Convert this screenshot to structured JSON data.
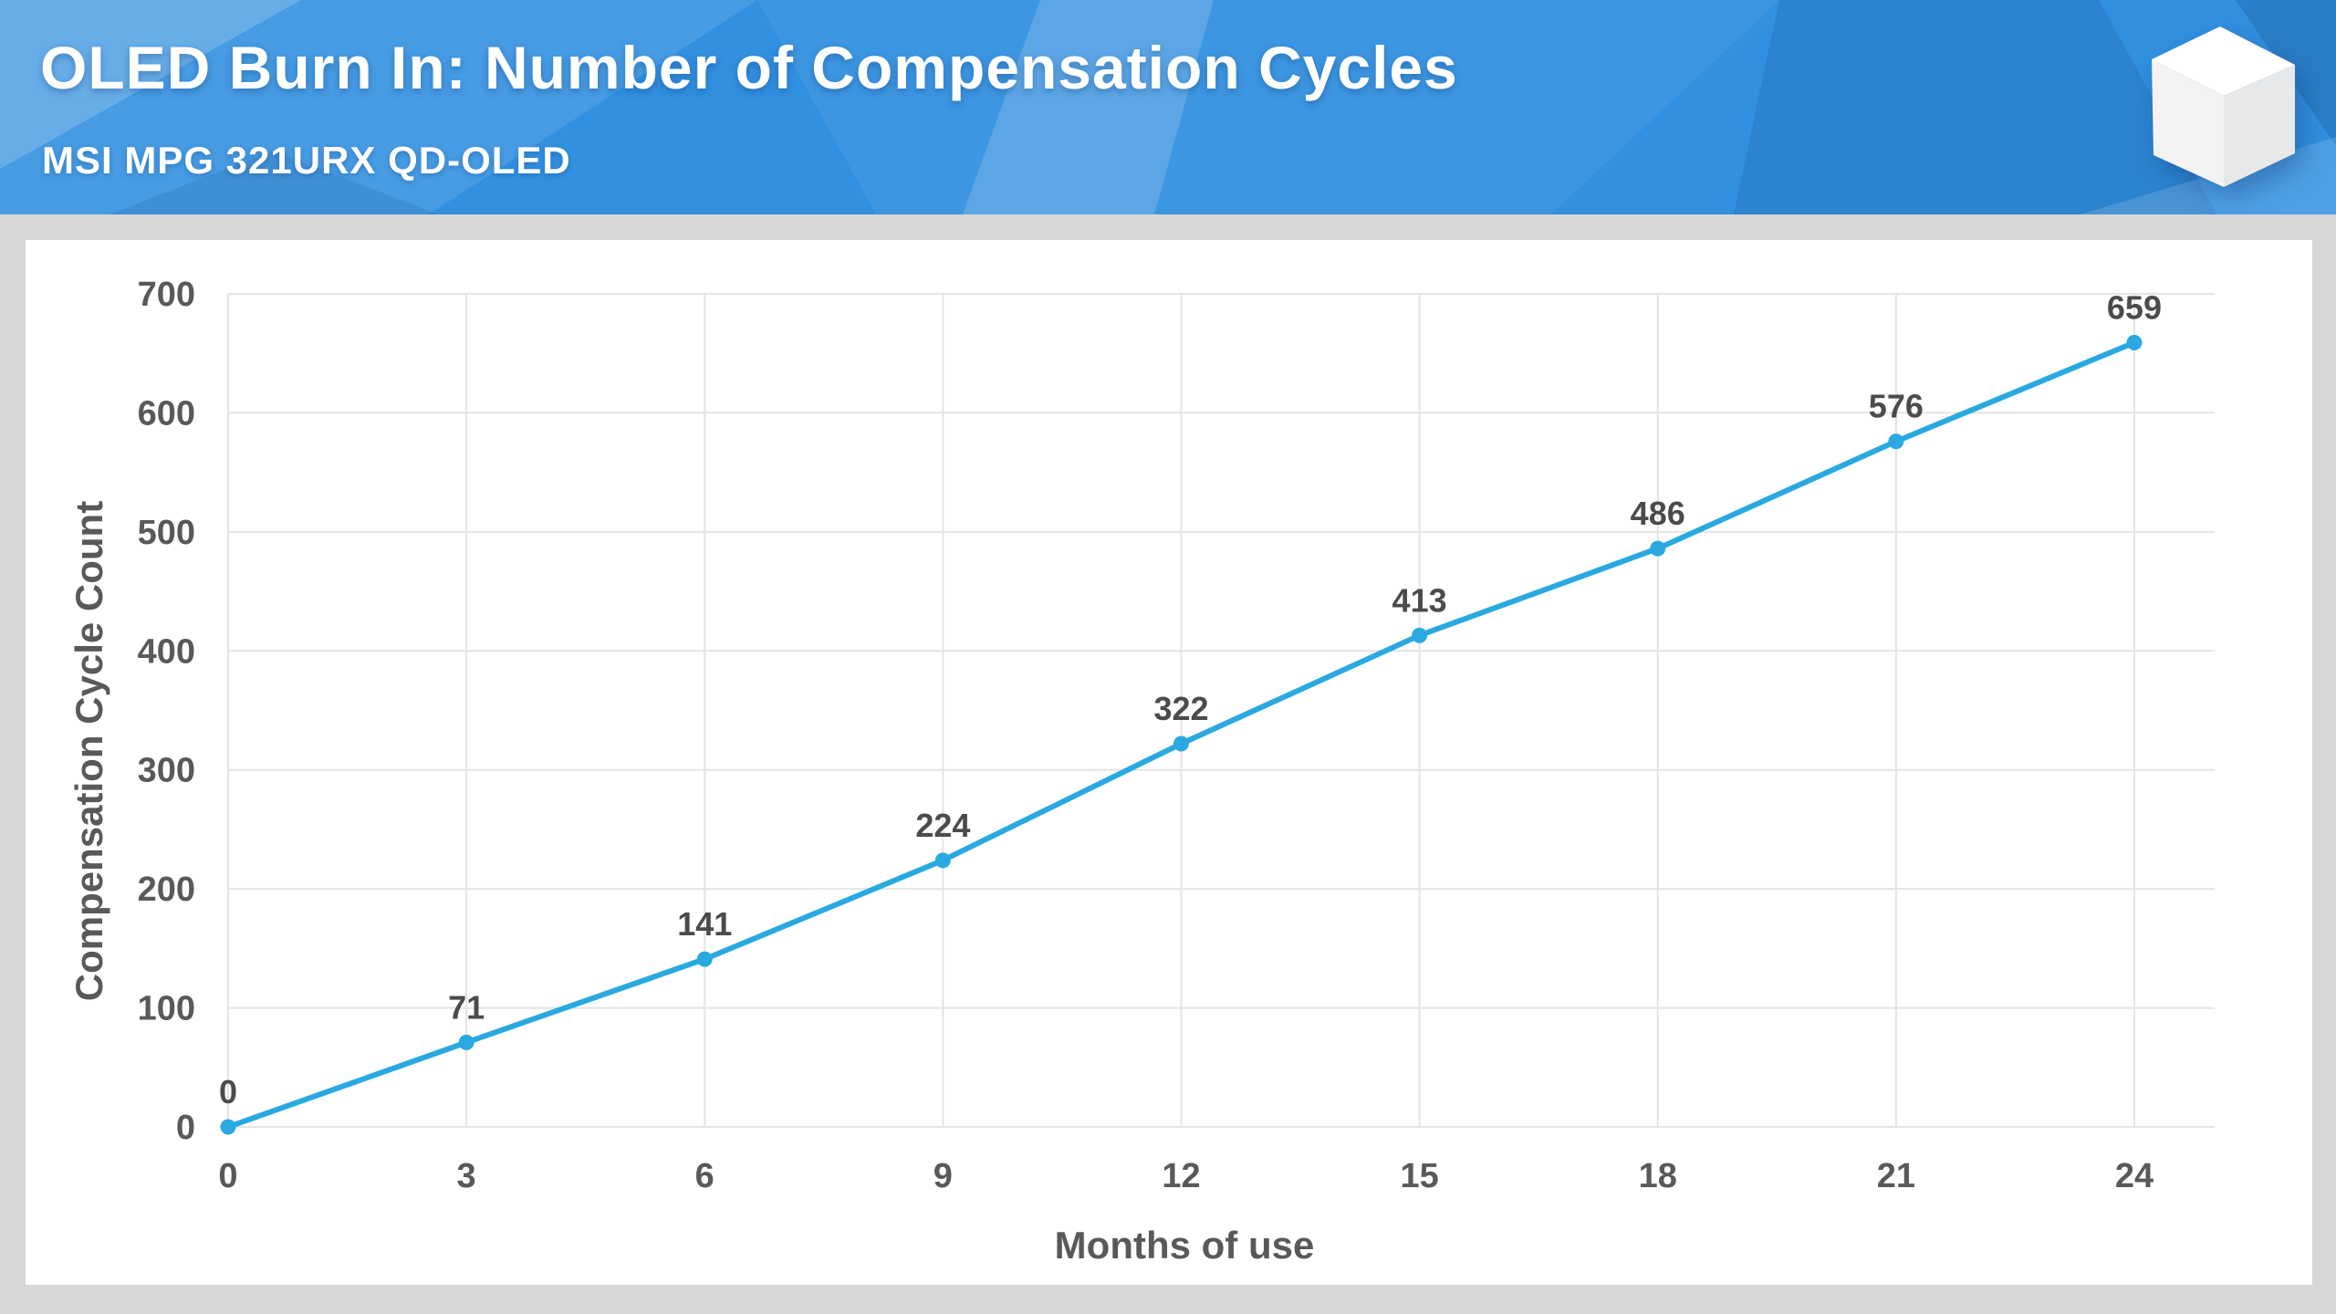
{
  "header": {
    "title": "OLED Burn In: Number of Compensation Cycles",
    "subtitle": "MSI MPG 321URX QD-OLED",
    "logo": "white-3d-cube",
    "background_color": "#3190e0"
  },
  "page": {
    "background_color": "#d6d7d8",
    "card_color": "#ffffff"
  },
  "chart_data": {
    "type": "line",
    "title": "OLED Burn In: Number of Compensation Cycles",
    "subtitle": "MSI MPG 321URX QD-OLED",
    "xlabel": "Months of use",
    "ylabel": "Compensation Cycle Count",
    "x": [
      0,
      3,
      6,
      9,
      12,
      15,
      18,
      21,
      24
    ],
    "values": [
      0,
      71,
      141,
      224,
      322,
      413,
      486,
      576,
      659
    ],
    "point_labels": [
      "0",
      "71",
      "141",
      "224",
      "322",
      "413",
      "486",
      "576",
      "659"
    ],
    "x_ticks": [
      0,
      3,
      6,
      9,
      12,
      15,
      18,
      21,
      24
    ],
    "y_ticks": [
      0,
      100,
      200,
      300,
      400,
      500,
      600,
      700
    ],
    "xlim": [
      0,
      24
    ],
    "ylim": [
      0,
      700
    ],
    "grid": true,
    "legend": false,
    "line_color": "#29a9e0",
    "marker": "circle",
    "label_color": "#4a4b4d",
    "tick_color": "#58595b",
    "grid_color": "#e3e4e5"
  }
}
